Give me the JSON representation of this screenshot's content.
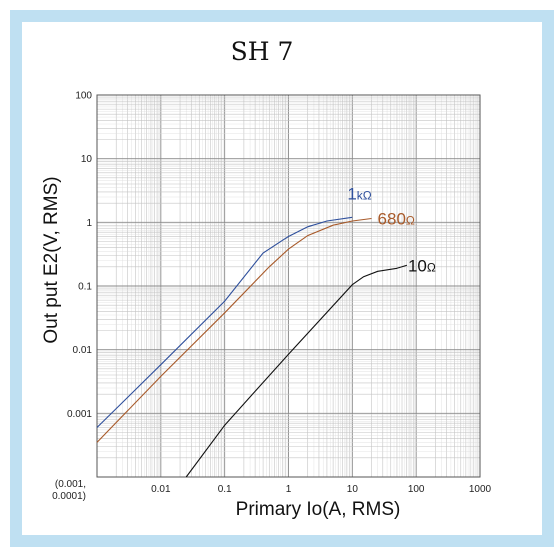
{
  "chart_data": {
    "type": "line",
    "title": "SH 7",
    "xlabel": "Primary Io(A, RMS)",
    "ylabel": "Out put E2(V, RMS)",
    "x_scale": "log",
    "y_scale": "log",
    "xlim": [
      0.001,
      1000
    ],
    "ylim": [
      0.0001,
      100
    ],
    "grid": true,
    "x_ticks": [
      "0.01",
      "0.1",
      "1",
      "10",
      "100",
      "1000"
    ],
    "y_ticks": [
      "0.001",
      "0.01",
      "0.1",
      "1",
      "10",
      "100"
    ],
    "origin_label_line1": "(0.001,",
    "origin_label_line2": "0.0001)",
    "series": [
      {
        "name": "1kΩ",
        "color": "#2e4f9c",
        "x": [
          0.001,
          0.01,
          0.1,
          0.4,
          0.8,
          1.0,
          2.0,
          4.0,
          10.0
        ],
        "y": [
          0.0006,
          0.0058,
          0.058,
          0.33,
          0.52,
          0.6,
          0.85,
          1.05,
          1.2
        ]
      },
      {
        "name": "680Ω",
        "color": "#a85a2a",
        "x": [
          0.001,
          0.01,
          0.1,
          0.5,
          1.0,
          2.0,
          5.0,
          10.0,
          20.0
        ],
        "y": [
          0.00035,
          0.0038,
          0.038,
          0.2,
          0.38,
          0.62,
          0.9,
          1.05,
          1.15
        ]
      },
      {
        "name": "10Ω",
        "color": "#111111",
        "x": [
          0.025,
          0.1,
          1.0,
          10.0,
          15.0,
          25.0,
          50.0
        ],
        "y": [
          0.0001,
          0.00065,
          0.0085,
          0.105,
          0.14,
          0.17,
          0.19
        ]
      }
    ],
    "series_labels": [
      {
        "main": "1",
        "sub": "kΩ"
      },
      {
        "main": "680",
        "sub": "Ω"
      },
      {
        "main": "10",
        "sub": "Ω"
      }
    ]
  }
}
